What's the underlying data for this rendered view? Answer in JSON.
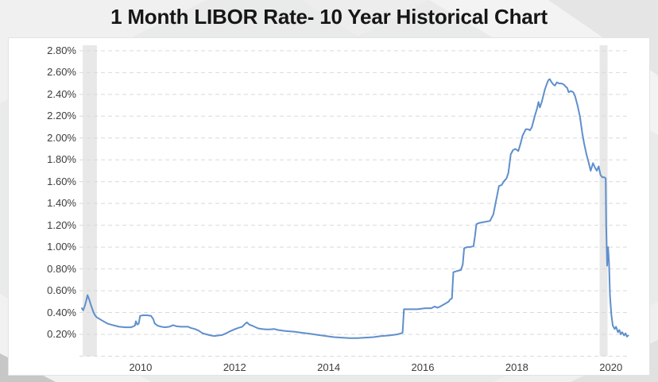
{
  "page": {
    "title": "1 Month LIBOR Rate- 10 Year Historical Chart"
  },
  "chart_data": {
    "type": "line",
    "title": "1 Month LIBOR Rate- 10 Year Historical Chart",
    "xlabel": "",
    "ylabel": "",
    "legend": "none",
    "grid": "horizontal-dashed",
    "xlim": [
      2008.7,
      2020.41
    ],
    "ylim": [
      0,
      2.85
    ],
    "colors": {
      "line": "#5f8fcc",
      "grid": "#d9d9d9",
      "recession_band": "#e8e8e8",
      "axis_text": "#3c3c3c"
    },
    "x_ticks": [
      {
        "label": "2010",
        "year": 2010
      },
      {
        "label": "2012",
        "year": 2012
      },
      {
        "label": "2014",
        "year": 2014
      },
      {
        "label": "2016",
        "year": 2016
      },
      {
        "label": "2018",
        "year": 2018
      },
      {
        "label": "2020",
        "year": 2020
      }
    ],
    "y_ticks": [
      {
        "label": "2.80%",
        "value": 2.8
      },
      {
        "label": "2.60%",
        "value": 2.6
      },
      {
        "label": "2.40%",
        "value": 2.4
      },
      {
        "label": "2.20%",
        "value": 2.2
      },
      {
        "label": "2.00%",
        "value": 2.0
      },
      {
        "label": "1.80%",
        "value": 1.8
      },
      {
        "label": "1.60%",
        "value": 1.6
      },
      {
        "label": "1.40%",
        "value": 1.4
      },
      {
        "label": "1.20%",
        "value": 1.2
      },
      {
        "label": "1.00%",
        "value": 1.0
      },
      {
        "label": "0.80%",
        "value": 0.8
      },
      {
        "label": "0.60%",
        "value": 0.6
      },
      {
        "label": "0.40%",
        "value": 0.4
      },
      {
        "label": "0.20%",
        "value": 0.2
      }
    ],
    "baseline_value": 0,
    "recession_bands": [
      [
        2008.77,
        2009.07
      ],
      [
        2019.76,
        2019.93
      ]
    ],
    "series": [
      {
        "name": "1 Month LIBOR Rate (%)",
        "points": [
          [
            2008.75,
            0.44
          ],
          [
            2008.78,
            0.42
          ],
          [
            2008.82,
            0.47
          ],
          [
            2008.85,
            0.52
          ],
          [
            2008.87,
            0.56
          ],
          [
            2008.9,
            0.53
          ],
          [
            2008.95,
            0.46
          ],
          [
            2009.0,
            0.4
          ],
          [
            2009.04,
            0.37
          ],
          [
            2009.07,
            0.355
          ],
          [
            2009.17,
            0.33
          ],
          [
            2009.29,
            0.3
          ],
          [
            2009.41,
            0.285
          ],
          [
            2009.54,
            0.27
          ],
          [
            2009.68,
            0.265
          ],
          [
            2009.8,
            0.265
          ],
          [
            2009.88,
            0.28
          ],
          [
            2009.9,
            0.32
          ],
          [
            2009.93,
            0.29
          ],
          [
            2009.96,
            0.3
          ],
          [
            2009.99,
            0.37
          ],
          [
            2010.05,
            0.375
          ],
          [
            2010.14,
            0.375
          ],
          [
            2010.22,
            0.37
          ],
          [
            2010.27,
            0.34
          ],
          [
            2010.3,
            0.3
          ],
          [
            2010.36,
            0.28
          ],
          [
            2010.44,
            0.27
          ],
          [
            2010.52,
            0.265
          ],
          [
            2010.61,
            0.27
          ],
          [
            2010.69,
            0.285
          ],
          [
            2010.76,
            0.275
          ],
          [
            2010.85,
            0.27
          ],
          [
            2010.93,
            0.27
          ],
          [
            2011.01,
            0.27
          ],
          [
            2011.06,
            0.26
          ],
          [
            2011.15,
            0.25
          ],
          [
            2011.23,
            0.235
          ],
          [
            2011.32,
            0.21
          ],
          [
            2011.4,
            0.2
          ],
          [
            2011.49,
            0.19
          ],
          [
            2011.57,
            0.185
          ],
          [
            2011.66,
            0.19
          ],
          [
            2011.74,
            0.195
          ],
          [
            2011.82,
            0.21
          ],
          [
            2011.91,
            0.23
          ],
          [
            2011.99,
            0.245
          ],
          [
            2012.08,
            0.26
          ],
          [
            2012.16,
            0.27
          ],
          [
            2012.23,
            0.3
          ],
          [
            2012.26,
            0.31
          ],
          [
            2012.31,
            0.29
          ],
          [
            2012.37,
            0.28
          ],
          [
            2012.42,
            0.27
          ],
          [
            2012.5,
            0.255
          ],
          [
            2012.58,
            0.25
          ],
          [
            2012.67,
            0.245
          ],
          [
            2012.75,
            0.245
          ],
          [
            2012.84,
            0.25
          ],
          [
            2012.92,
            0.24
          ],
          [
            2013.01,
            0.235
          ],
          [
            2013.09,
            0.23
          ],
          [
            2013.26,
            0.225
          ],
          [
            2013.43,
            0.215
          ],
          [
            2013.6,
            0.205
          ],
          [
            2013.77,
            0.195
          ],
          [
            2013.94,
            0.185
          ],
          [
            2014.11,
            0.175
          ],
          [
            2014.27,
            0.17
          ],
          [
            2014.44,
            0.165
          ],
          [
            2014.61,
            0.165
          ],
          [
            2014.78,
            0.17
          ],
          [
            2014.95,
            0.175
          ],
          [
            2015.12,
            0.185
          ],
          [
            2015.29,
            0.19
          ],
          [
            2015.46,
            0.2
          ],
          [
            2015.54,
            0.21
          ],
          [
            2015.57,
            0.215
          ],
          [
            2015.6,
            0.43
          ],
          [
            2015.71,
            0.43
          ],
          [
            2015.88,
            0.43
          ],
          [
            2016.05,
            0.44
          ],
          [
            2016.18,
            0.44
          ],
          [
            2016.25,
            0.455
          ],
          [
            2016.32,
            0.445
          ],
          [
            2016.39,
            0.46
          ],
          [
            2016.47,
            0.48
          ],
          [
            2016.55,
            0.5
          ],
          [
            2016.58,
            0.52
          ],
          [
            2016.62,
            0.53
          ],
          [
            2016.65,
            0.77
          ],
          [
            2016.72,
            0.78
          ],
          [
            2016.81,
            0.79
          ],
          [
            2016.85,
            0.84
          ],
          [
            2016.88,
            0.99
          ],
          [
            2016.95,
            1.0
          ],
          [
            2017.01,
            1.0
          ],
          [
            2017.08,
            1.01
          ],
          [
            2017.11,
            1.1
          ],
          [
            2017.14,
            1.21
          ],
          [
            2017.19,
            1.22
          ],
          [
            2017.31,
            1.23
          ],
          [
            2017.43,
            1.24
          ],
          [
            2017.5,
            1.3
          ],
          [
            2017.57,
            1.45
          ],
          [
            2017.62,
            1.56
          ],
          [
            2017.68,
            1.57
          ],
          [
            2017.72,
            1.6
          ],
          [
            2017.78,
            1.63
          ],
          [
            2017.82,
            1.68
          ],
          [
            2017.87,
            1.85
          ],
          [
            2017.92,
            1.89
          ],
          [
            2017.97,
            1.9
          ],
          [
            2018.03,
            1.88
          ],
          [
            2018.08,
            1.95
          ],
          [
            2018.12,
            2.02
          ],
          [
            2018.19,
            2.08
          ],
          [
            2018.24,
            2.08
          ],
          [
            2018.28,
            2.07
          ],
          [
            2018.32,
            2.1
          ],
          [
            2018.38,
            2.2
          ],
          [
            2018.43,
            2.27
          ],
          [
            2018.46,
            2.33
          ],
          [
            2018.49,
            2.28
          ],
          [
            2018.53,
            2.33
          ],
          [
            2018.57,
            2.4
          ],
          [
            2018.6,
            2.45
          ],
          [
            2018.64,
            2.5
          ],
          [
            2018.67,
            2.53
          ],
          [
            2018.7,
            2.54
          ],
          [
            2018.74,
            2.51
          ],
          [
            2018.78,
            2.49
          ],
          [
            2018.81,
            2.48
          ],
          [
            2018.85,
            2.51
          ],
          [
            2018.9,
            2.5
          ],
          [
            2018.95,
            2.5
          ],
          [
            2019.0,
            2.49
          ],
          [
            2019.04,
            2.47
          ],
          [
            2019.07,
            2.46
          ],
          [
            2019.1,
            2.42
          ],
          [
            2019.15,
            2.43
          ],
          [
            2019.2,
            2.42
          ],
          [
            2019.24,
            2.38
          ],
          [
            2019.29,
            2.3
          ],
          [
            2019.34,
            2.2
          ],
          [
            2019.39,
            2.05
          ],
          [
            2019.43,
            1.95
          ],
          [
            2019.48,
            1.85
          ],
          [
            2019.53,
            1.77
          ],
          [
            2019.57,
            1.7
          ],
          [
            2019.62,
            1.77
          ],
          [
            2019.66,
            1.73
          ],
          [
            2019.7,
            1.7
          ],
          [
            2019.74,
            1.74
          ],
          [
            2019.78,
            1.66
          ],
          [
            2019.82,
            1.64
          ],
          [
            2019.86,
            1.64
          ],
          [
            2019.89,
            1.63
          ],
          [
            2019.9,
            1.2
          ],
          [
            2019.92,
            0.83
          ],
          [
            2019.94,
            1.0
          ],
          [
            2019.96,
            0.85
          ],
          [
            2019.98,
            0.55
          ],
          [
            2020.01,
            0.38
          ],
          [
            2020.04,
            0.28
          ],
          [
            2020.08,
            0.25
          ],
          [
            2020.11,
            0.27
          ],
          [
            2020.15,
            0.22
          ],
          [
            2020.18,
            0.24
          ],
          [
            2020.21,
            0.2
          ],
          [
            2020.24,
            0.22
          ],
          [
            2020.28,
            0.19
          ],
          [
            2020.31,
            0.21
          ],
          [
            2020.34,
            0.18
          ],
          [
            2020.37,
            0.19
          ]
        ]
      }
    ]
  }
}
